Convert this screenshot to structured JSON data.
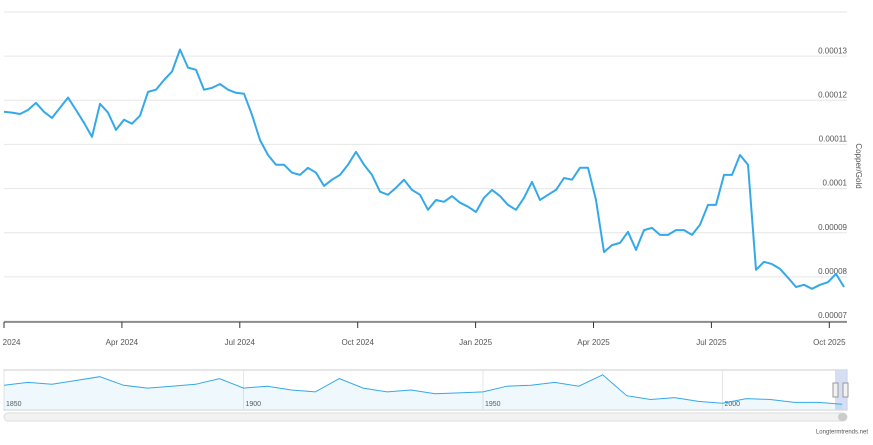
{
  "chart_data": {
    "type": "line",
    "y_label": "Copper/Gold",
    "series": [
      {
        "name": "Copper/Gold",
        "color": "#35a9e8",
        "values": [
          0.0001174,
          0.0001172,
          0.0001169,
          0.0001178,
          0.0001194,
          0.0001174,
          0.000116,
          0.0001183,
          0.0001206,
          0.0001178,
          0.0001149,
          0.0001117,
          0.0001192,
          0.0001172,
          0.0001133,
          0.0001156,
          0.0001147,
          0.0001165,
          0.0001219,
          0.0001224,
          0.0001246,
          0.0001265,
          0.0001315,
          0.0001274,
          0.0001269,
          0.0001224,
          0.0001228,
          0.0001237,
          0.0001224,
          0.0001217,
          0.0001215,
          0.0001167,
          0.000111,
          0.0001076,
          0.0001054,
          0.0001054,
          0.0001036,
          0.0001031,
          0.0001047,
          0.0001036,
          0.0001006,
          0.000102,
          0.0001031,
          0.0001054,
          0.0001083,
          0.0001054,
          0.0001031,
          9.93e-05,
          9.86e-05,
          0.0001002,
          0.000102,
          9.97e-05,
          9.86e-05,
          9.52e-05,
          9.74e-05,
          9.7e-05,
          9.83e-05,
          9.68e-05,
          9.59e-05,
          9.47e-05,
          9.79e-05,
          9.97e-05,
          9.83e-05,
          9.63e-05,
          9.52e-05,
          9.79e-05,
          0.0001015,
          9.74e-05,
          9.86e-05,
          9.97e-05,
          0.0001024,
          0.000102,
          0.0001047,
          0.0001047,
          9.74e-05,
          8.56e-05,
          8.72e-05,
          8.77e-05,
          9.02e-05,
          8.61e-05,
          9.06e-05,
          9.11e-05,
          8.95e-05,
          8.95e-05,
          9.06e-05,
          9.06e-05,
          8.95e-05,
          9.18e-05,
          9.63e-05,
          9.63e-05,
          0.0001031,
          0.0001031,
          0.0001076,
          0.0001054,
          8.16e-05,
          8.34e-05,
          8.29e-05,
          8.18e-05,
          7.98e-05,
          7.77e-05,
          7.82e-05,
          7.73e-05,
          7.82e-05,
          7.88e-05,
          8.07e-05,
          7.77e-05
        ]
      }
    ],
    "ylim": [
      7e-05,
      0.00014
    ],
    "yticks": [
      7e-05,
      8e-05,
      9e-05,
      0.0001,
      0.00011,
      0.00012,
      0.00013
    ],
    "xticks": [
      {
        "value": "2024-01",
        "label": "Jan 2024"
      },
      {
        "value": "2024-04",
        "label": "Apr 2024"
      },
      {
        "value": "2024-07",
        "label": "Jul 2024"
      },
      {
        "value": "2024-10",
        "label": "Oct 2024"
      },
      {
        "value": "2025-01",
        "label": "Jan 2025"
      },
      {
        "value": "2025-04",
        "label": "Apr 2025"
      },
      {
        "value": "2025-07",
        "label": "Jul 2025"
      },
      {
        "value": "2025-10",
        "label": "Oct 2025"
      }
    ],
    "grid": true,
    "navigator": {
      "x": [
        1850,
        1855,
        1860,
        1865,
        1870,
        1875,
        1880,
        1885,
        1890,
        1895,
        1900,
        1905,
        1910,
        1915,
        1920,
        1925,
        1930,
        1935,
        1940,
        1945,
        1950,
        1955,
        1960,
        1965,
        1970,
        1975,
        1980,
        1985,
        1990,
        1995,
        2000,
        2005,
        2010,
        2015,
        2020,
        2025
      ],
      "values": [
        0.00025,
        0.00028,
        0.00026,
        0.0003,
        0.00034,
        0.00025,
        0.00022,
        0.00024,
        0.00026,
        0.00032,
        0.00022,
        0.00024,
        0.0002,
        0.00018,
        0.00032,
        0.00022,
        0.00018,
        0.0002,
        0.00016,
        0.00017,
        0.00018,
        0.00024,
        0.00025,
        0.00028,
        0.00024,
        0.00036,
        0.00014,
        0.0001,
        0.00012,
        8e-05,
        6e-05,
        0.00011,
        0.0001,
        7e-05,
        7e-05,
        5e-05
      ],
      "ylim": [
        0,
        0.0004
      ],
      "xlim": [
        1850,
        2026
      ],
      "xticks": [
        1850,
        1900,
        1950,
        2000
      ]
    },
    "credit": "Longtermtrends.net"
  }
}
